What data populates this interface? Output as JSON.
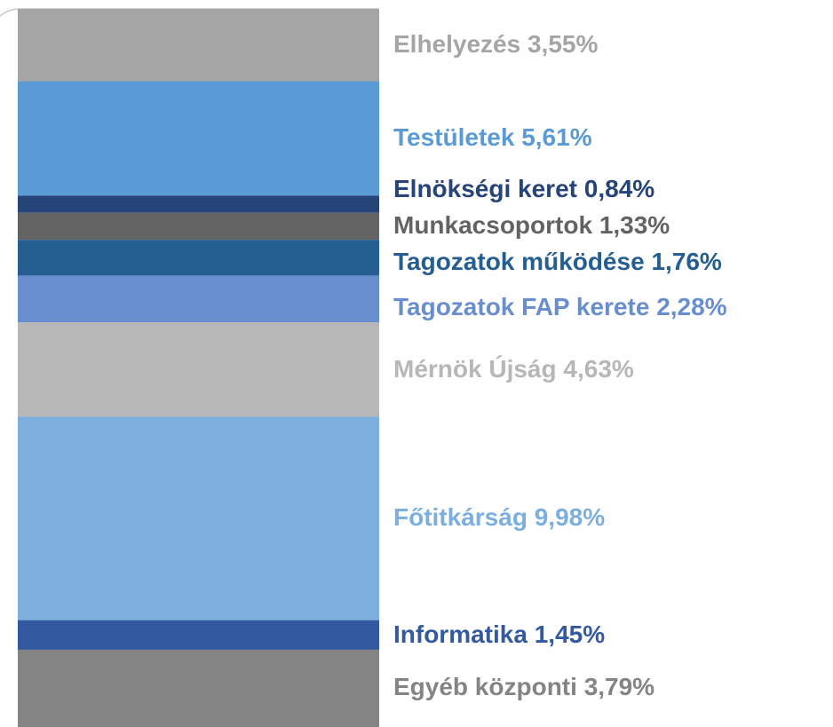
{
  "chart_data": {
    "type": "bar",
    "stacked": true,
    "series": [
      {
        "name": "Elhelyezés",
        "color": "#a5a5a5",
        "values": [
          3.55
        ],
        "value_labels": [
          "3,55%"
        ]
      },
      {
        "name": "Testületek",
        "color": "#5b9bd5",
        "values": [
          5.61
        ],
        "value_labels": [
          "5,61%"
        ]
      },
      {
        "name": "Elnökségi keret",
        "color": "#264478",
        "values": [
          0.84
        ],
        "value_labels": [
          "0,84%"
        ]
      },
      {
        "name": "Munkacsoportok",
        "color": "#636363",
        "values": [
          1.33
        ],
        "value_labels": [
          "1,33%"
        ]
      },
      {
        "name": "Tagozatok működése",
        "color": "#255e91",
        "values": [
          1.76
        ],
        "value_labels": [
          "1,76%"
        ]
      },
      {
        "name": "Tagozatok FAP kerete",
        "color": "#698ed0",
        "values": [
          2.28
        ],
        "value_labels": [
          "2,28%"
        ]
      },
      {
        "name": "Mérnök Újság",
        "color": "#b7b7b7",
        "values": [
          4.63
        ],
        "value_labels": [
          "4,63%"
        ]
      },
      {
        "name": "Főtitkárság",
        "color": "#7cafdd",
        "values": [
          9.98
        ],
        "value_labels": [
          "9,98%"
        ]
      },
      {
        "name": "Informatika",
        "color": "#335aa1",
        "values": [
          1.45
        ],
        "value_labels": [
          "1,45%"
        ]
      },
      {
        "name": "Egyéb központi",
        "color": "#848484",
        "values": [
          3.79
        ],
        "value_labels": [
          "3,79%"
        ]
      }
    ]
  }
}
